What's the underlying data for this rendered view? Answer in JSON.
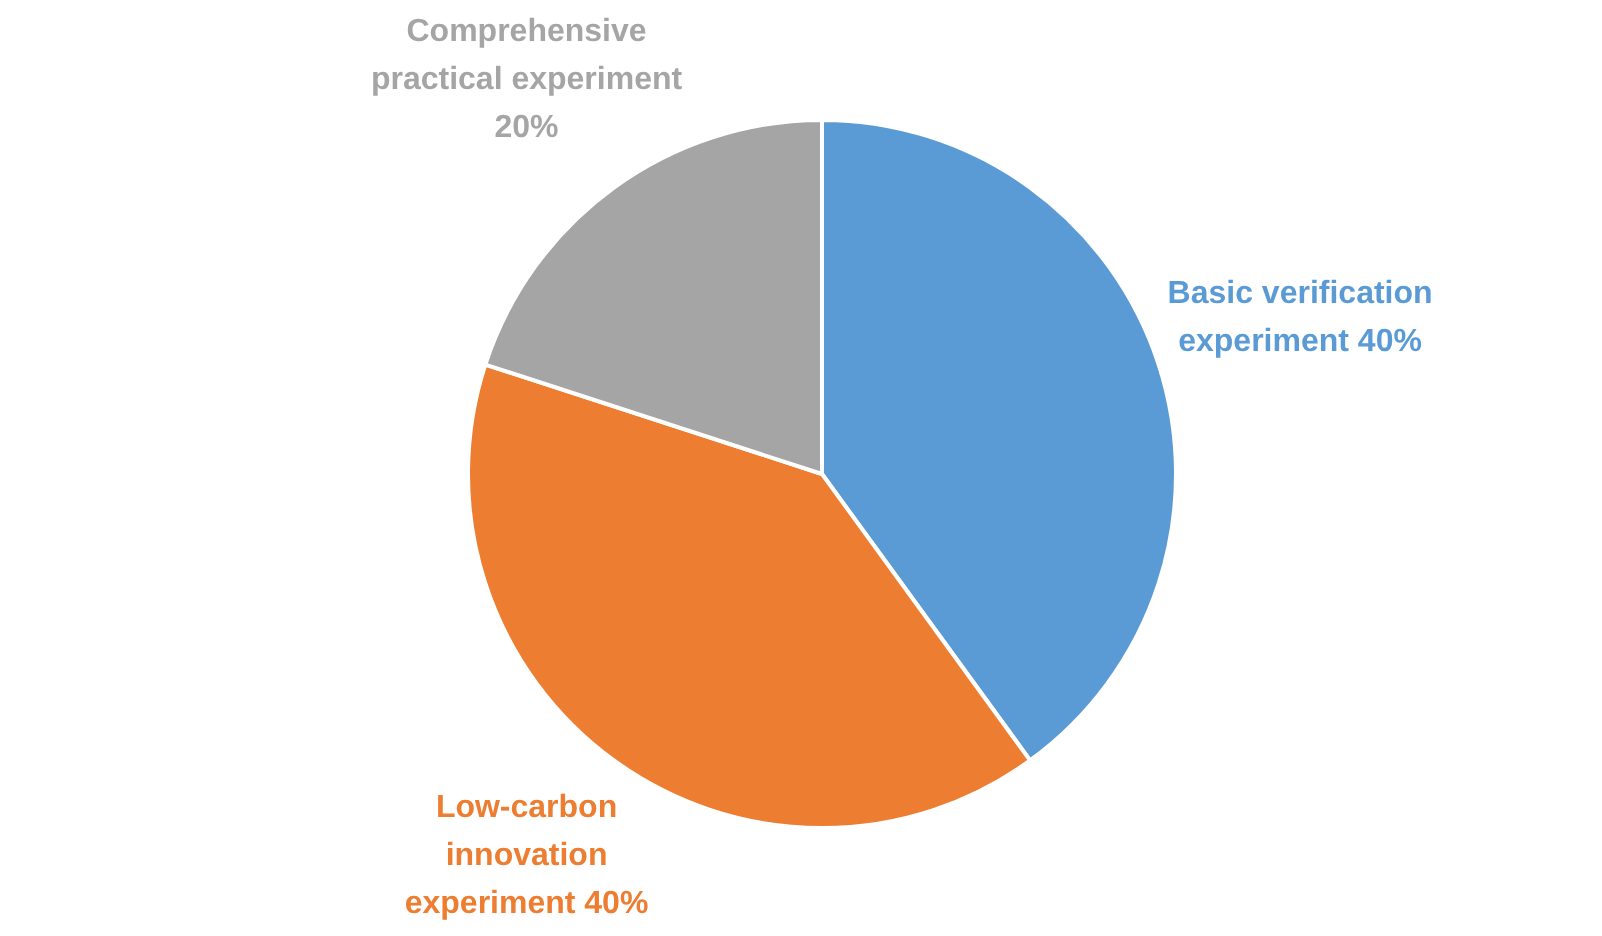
{
  "chart_data": {
    "type": "pie",
    "categories": [
      "Basic verification experiment",
      "Low-carbon innovation experiment",
      "Comprehensive practical experiment"
    ],
    "values": [
      40,
      40,
      20
    ],
    "value_labels": [
      "40%",
      "40%",
      "20%"
    ],
    "colors": [
      "#5b9bd5",
      "#ed7d31",
      "#a5a5a5"
    ],
    "legend": false
  }
}
